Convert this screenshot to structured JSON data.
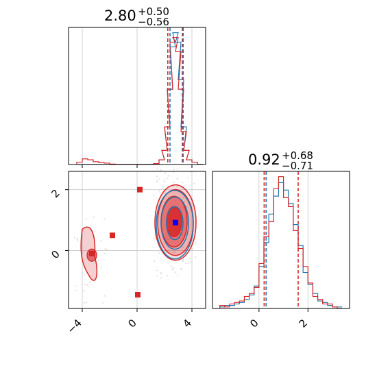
{
  "colors": {
    "blue": "#1f77b4",
    "red": "#d62728",
    "grid": "#c8c8c8",
    "axis": "#000000"
  },
  "titles": {
    "param1": {
      "value": "2.80",
      "plus": "+0.50",
      "minus": "−0.56"
    },
    "param2": {
      "value": "0.92",
      "plus": "+0.68",
      "minus": "−0.71"
    }
  },
  "chart_data": [
    {
      "type": "histogram",
      "panel": "top-left",
      "xlim": [
        -5.0,
        5.0
      ],
      "grid": true,
      "bin_centers": [
        -4.2,
        -3.8,
        -3.4,
        -3.0,
        -2.6,
        -2.2,
        -1.8,
        -1.4,
        -1.0,
        -0.6,
        -0.2,
        0.2,
        0.6,
        1.0,
        1.4,
        1.8,
        2.0,
        2.2,
        2.4,
        2.6,
        2.8,
        3.0,
        3.2,
        3.4,
        3.6,
        3.8,
        4.2,
        4.6
      ],
      "series": [
        {
          "color": "blue",
          "values": [
            0,
            0,
            0,
            0,
            0,
            0,
            0,
            0,
            0,
            0,
            0,
            0,
            0,
            0,
            0.2,
            1,
            3,
            8,
            16,
            25,
            28,
            26,
            18,
            8,
            3,
            1,
            0.5,
            0
          ]
        },
        {
          "color": "red",
          "values": [
            0.5,
            1.2,
            1.0,
            0.6,
            0.4,
            0.3,
            0.1,
            0,
            0,
            0,
            0,
            0,
            0,
            0,
            0.2,
            1,
            3,
            8,
            16,
            26,
            27,
            24,
            16,
            7,
            3,
            1,
            0.5,
            0
          ]
        }
      ],
      "quantile_lines": [
        {
          "color": "red",
          "x": 2.24
        },
        {
          "color": "blue",
          "x": 2.4
        },
        {
          "color": "red",
          "x": 3.3
        },
        {
          "color": "blue",
          "x": 3.36
        }
      ],
      "x_ticks": [
        -4,
        0,
        4
      ]
    },
    {
      "type": "contour",
      "panel": "bottom-left",
      "xlim": [
        -5.0,
        5.0
      ],
      "ylim": [
        -1.9,
        2.6
      ],
      "grid": true,
      "x_ticks": [
        "−4",
        "0",
        "4"
      ],
      "y_ticks": [
        "0",
        "2"
      ],
      "x_tick_values": [
        -4,
        0,
        4
      ],
      "y_tick_values": [
        0,
        2
      ],
      "red_markers": [
        [
          0.2,
          2.0
        ],
        [
          -1.8,
          0.5
        ],
        [
          -3.3,
          -0.1
        ],
        [
          0.05,
          -1.45
        ]
      ],
      "blue_marker": [
        2.8,
        0.92
      ]
    },
    {
      "type": "histogram",
      "panel": "bottom-right",
      "xlim": [
        -1.9,
        3.7
      ],
      "grid": true,
      "x_ticks": [
        "0",
        "2"
      ],
      "x_tick_values": [
        0,
        2
      ],
      "bin_centers": [
        -1.5,
        -1.3,
        -1.1,
        -0.9,
        -0.7,
        -0.5,
        -0.3,
        -0.1,
        0.1,
        0.3,
        0.5,
        0.7,
        0.9,
        1.1,
        1.3,
        1.5,
        1.7,
        1.9,
        2.1,
        2.3,
        2.5,
        2.7,
        2.9,
        3.1,
        3.3
      ],
      "series": [
        {
          "color": "blue",
          "values": [
            1,
            2,
            2,
            3,
            4,
            6,
            9,
            15,
            28,
            44,
            63,
            75,
            84,
            79,
            70,
            56,
            42,
            24,
            16,
            10,
            5,
            4,
            2,
            1,
            1
          ]
        },
        {
          "color": "red",
          "values": [
            2,
            1,
            3,
            4,
            5,
            8,
            10,
            14,
            30,
            48,
            58,
            80,
            88,
            74,
            68,
            52,
            40,
            28,
            17,
            8,
            6,
            3,
            3,
            1,
            0
          ]
        }
      ],
      "quantile_lines": [
        {
          "color": "red",
          "x": 0.21
        },
        {
          "color": "blue",
          "x": 0.29
        },
        {
          "color": "red",
          "x": 1.6
        }
      ]
    }
  ]
}
